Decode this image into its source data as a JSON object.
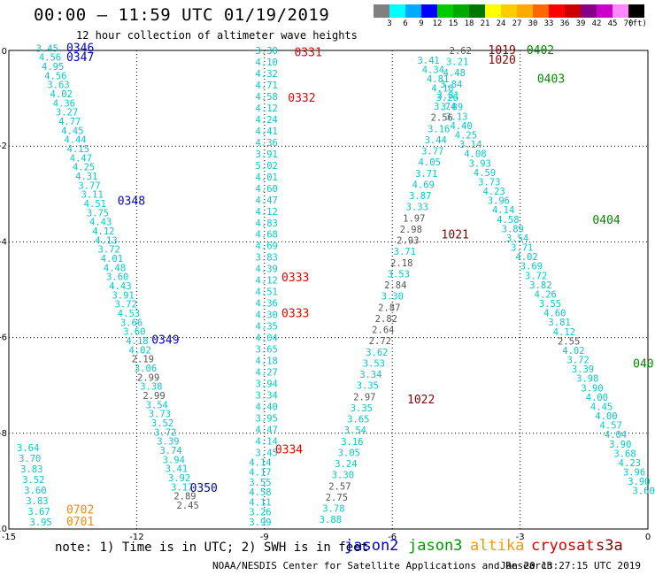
{
  "header": {
    "title": "00:00 – 11:59 UTC 01/19/2019",
    "subtitle": "12 hour collection of altimeter wave heights"
  },
  "legend": {
    "colorbar": [
      {
        "color": "#808080",
        "label": "3"
      },
      {
        "color": "#00ffff",
        "label": "6"
      },
      {
        "color": "#00aaff",
        "label": "9"
      },
      {
        "color": "#0000ff",
        "label": "12"
      },
      {
        "color": "#00cc00",
        "label": "15"
      },
      {
        "color": "#00aa00",
        "label": "18"
      },
      {
        "color": "#007700",
        "label": "21"
      },
      {
        "color": "#ffff00",
        "label": "24"
      },
      {
        "color": "#ffcc00",
        "label": "27"
      },
      {
        "color": "#ffaa00",
        "label": "30"
      },
      {
        "color": "#ff6600",
        "label": "33"
      },
      {
        "color": "#ff0000",
        "label": "36"
      },
      {
        "color": "#cc0000",
        "label": "39"
      },
      {
        "color": "#880088",
        "label": "42"
      },
      {
        "color": "#cc00cc",
        "label": "45"
      },
      {
        "color": "#ff88ff",
        "label": "70"
      },
      {
        "color": "#000000",
        "label": ""
      }
    ],
    "unit": "(ft)"
  },
  "footer": {
    "note": "note: 1) Time is in UTC; 2) SWH is in feet",
    "credit": "NOAA/NESDIS Center for Satellite Applications and Research",
    "timestamp": "Jan 20 13:27:15 UTC 2019",
    "satellites": [
      {
        "name": "jason2",
        "color": "#0000cc"
      },
      {
        "name": "jason3",
        "color": "#009900"
      },
      {
        "name": "altika",
        "color": "#ff9900"
      },
      {
        "name": "cryosat",
        "color": "#dd0000"
      },
      {
        "name": "s3a",
        "color": "#880000"
      }
    ]
  },
  "chart_data": {
    "type": "scatter",
    "xlim": [
      -15,
      0
    ],
    "ylim": [
      -10,
      0
    ],
    "xticks": [
      -15,
      -12,
      -9,
      -6,
      -3,
      0
    ],
    "yticks": [
      0,
      -2,
      -4,
      -6,
      -8,
      -10
    ],
    "grid": true,
    "tracks": [
      {
        "satellite": "jason2",
        "x0": -14.1,
        "y0": 0.05,
        "x1": -10.8,
        "y1": -9.5,
        "values": [
          "3.45",
          "4.56",
          "4.95",
          "4.56",
          "3.63",
          "4.02",
          "4.36",
          "3.27",
          "4.77",
          "4.45",
          "4.44",
          "4.15",
          "4.47",
          "4.25",
          "4.31",
          "3.77",
          "3.11",
          "4.51",
          "3.75",
          "4.43",
          "4.12",
          "4.13",
          "3.72",
          "4.01",
          "4.48",
          "3.60",
          "4.43",
          "3.91",
          "3.72",
          "4.53",
          "3.66",
          "3.60",
          "4.18",
          "4.02",
          "2.19",
          "3.06",
          "2.99",
          "3.38",
          "2.99",
          "3.54",
          "3.73",
          "3.52",
          "3.72",
          "3.39",
          "3.74",
          "3.94",
          "3.41",
          "3.92",
          "3.17",
          "2.89",
          "2.45"
        ],
        "labels": [
          {
            "text": "0346",
            "x": -13.65,
            "y": 0.05
          },
          {
            "text": "0347",
            "x": -13.65,
            "y": -0.15
          },
          {
            "text": "0348",
            "x": -12.45,
            "y": -3.15
          },
          {
            "text": "0349",
            "x": -11.65,
            "y": -6.05
          },
          {
            "text": "0350",
            "x": -10.75,
            "y": -9.15
          }
        ]
      },
      {
        "satellite": "jason3",
        "x0": -5.15,
        "y0": -0.2,
        "x1": -0.1,
        "y1": -9.2,
        "values": [
          "3.41",
          "4.34",
          "4.81",
          "4.18",
          "3.26",
          "3.89",
          "3.13",
          "4.40",
          "4.25",
          "3.14",
          "4.08",
          "3.93",
          "4.59",
          "3.73",
          "4.23",
          "3.96",
          "4.14",
          "4.58",
          "3.89",
          "3.54",
          "3.71",
          "4.02",
          "3.69",
          "3.72",
          "3.82",
          "4.26",
          "3.55",
          "4.60",
          "3.81",
          "4.12",
          "2.55",
          "4.02",
          "3.72",
          "3.39",
          "3.98",
          "3.90",
          "4.00",
          "4.45",
          "4.00",
          "4.57",
          "4.04",
          "3.90",
          "3.68",
          "4.23",
          "3.96",
          "3.90",
          "3.60"
        ],
        "labels": [
          {
            "text": "0402",
            "x": -2.85,
            "y": 0.0
          },
          {
            "text": "0403",
            "x": -2.6,
            "y": -0.6
          },
          {
            "text": "0404",
            "x": -1.3,
            "y": -3.55
          },
          {
            "text": "040",
            "x": -0.35,
            "y": -6.55
          }
        ]
      },
      {
        "satellite": "cryosat",
        "x0": -8.95,
        "y0": 0.0,
        "x1": -8.95,
        "y1": -8.4,
        "values": [
          "3.30",
          "4.10",
          "4.32",
          "4.71",
          "4.58",
          "4.12",
          "4.24",
          "4.41",
          "4.36",
          "3.91",
          "5.02",
          "4.01",
          "4.60",
          "4.47",
          "4.12",
          "4.83",
          "4.68",
          "4.69",
          "3.83",
          "4.39",
          "4.12",
          "4.51",
          "4.36",
          "4.30",
          "4.35",
          "4.04",
          "3.65",
          "4.18",
          "4.27",
          "3.94",
          "3.34",
          "4.40",
          "3.95",
          "4.47",
          "4.14",
          "3.45"
        ],
        "labels": [
          {
            "text": "0331",
            "x": -8.3,
            "y": -0.05
          },
          {
            "text": "0332",
            "x": -8.45,
            "y": -1.0
          },
          {
            "text": "0333",
            "x": -8.6,
            "y": -4.75
          },
          {
            "text": "0333",
            "x": -8.6,
            "y": -5.5
          },
          {
            "text": "0334",
            "x": -8.75,
            "y": -8.35
          }
        ]
      },
      {
        "satellite": "cryosat",
        "x0": -9.1,
        "y0": -8.6,
        "x1": -9.1,
        "y1": -9.85,
        "values": [
          "4.14",
          "4.17",
          "3.55",
          "4.58",
          "4.11",
          "3.26",
          "3.99"
        ],
        "labels": []
      },
      {
        "satellite": "s3a",
        "x0": -4.4,
        "y0": 0.0,
        "x1": -7.45,
        "y1": -9.8,
        "values": [
          "2.62",
          "3.21",
          "4.48",
          "3.84",
          "3.81",
          "3.74",
          "2.56",
          "3.16",
          "3.44",
          "3.77",
          "4.05",
          "3.71",
          "4.69",
          "3.87",
          "3.33",
          "1.97",
          "2.98",
          "2.93",
          "3.71",
          "2.18",
          "3.53",
          "2.84",
          "3.30",
          "2.87",
          "2.82",
          "2.64",
          "2.72",
          "3.62",
          "3.53",
          "3.34",
          "3.35",
          "2.97",
          "3.35",
          "3.65",
          "3.54",
          "3.16",
          "3.05",
          "3.24",
          "3.30",
          "2.57",
          "2.75",
          "3.78",
          "3.88"
        ],
        "labels": [
          {
            "text": "1019",
            "x": -3.75,
            "y": 0.0
          },
          {
            "text": "1020",
            "x": -3.75,
            "y": -0.2
          },
          {
            "text": "1021",
            "x": -4.85,
            "y": -3.85
          },
          {
            "text": "1022",
            "x": -5.65,
            "y": -7.3
          }
        ]
      },
      {
        "satellite": "altika",
        "x0": -14.55,
        "y0": -8.3,
        "x1": -14.25,
        "y1": -9.85,
        "values": [
          "3.64",
          "3.70",
          "3.83",
          "3.52",
          "3.60",
          "3.83",
          "3.67",
          "3.95"
        ],
        "labels": [
          {
            "text": "0702",
            "x": -13.65,
            "y": -9.6
          },
          {
            "text": "0701",
            "x": -13.65,
            "y": -9.85
          }
        ]
      }
    ]
  }
}
